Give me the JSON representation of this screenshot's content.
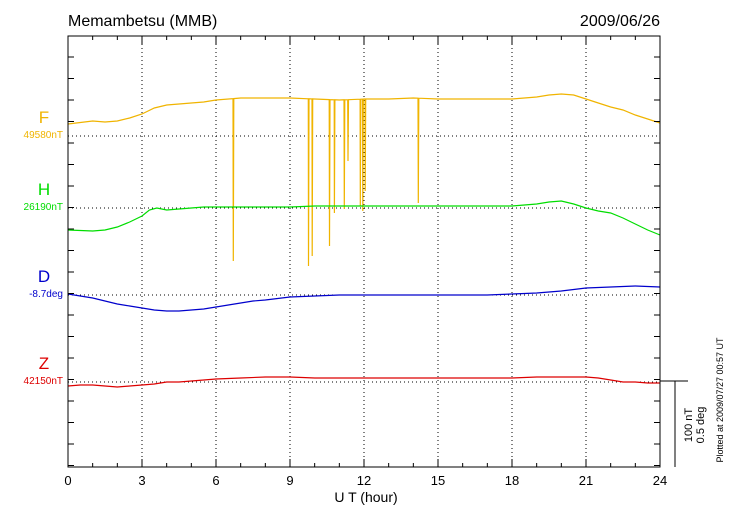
{
  "header": {
    "station": "Memambetsu (MMB)",
    "date": "2009/06/26"
  },
  "footer_note": "Plotted at 2009/07/27 00:57 UT",
  "scale_bar": {
    "line1": "100 nT",
    "line2": "0.5 deg"
  },
  "colors": {
    "F": "#f0b400",
    "H": "#00dd00",
    "D": "#0000cc",
    "Z": "#dd0000",
    "axis": "#000000",
    "grid": "#000000"
  },
  "chart_data": {
    "type": "line",
    "xlabel": "U T (hour)",
    "xlim": [
      0,
      24
    ],
    "xticks": [
      "0",
      "3",
      "6",
      "9",
      "12",
      "15",
      "18",
      "21",
      "24"
    ],
    "grid": true,
    "series": [
      {
        "name": "F",
        "label": "F",
        "baseline_label": "49580nT",
        "baseline_value": 49580,
        "unit": "nT",
        "color": "#f0b400",
        "x": [
          0,
          1,
          1.5,
          2,
          2.5,
          3,
          3.5,
          4,
          4.5,
          5,
          5.5,
          6,
          7,
          8,
          9,
          10,
          11,
          12,
          13,
          14,
          15,
          16,
          17,
          18,
          19,
          19.5,
          20,
          20.5,
          21,
          21.5,
          22,
          22.5,
          23,
          23.5,
          24
        ],
        "y": [
          12,
          15,
          14,
          15,
          18,
          22,
          28,
          31,
          32,
          33,
          34,
          36,
          38,
          38,
          38,
          37,
          36,
          37,
          37,
          38,
          37,
          37,
          37,
          37,
          39,
          41,
          42,
          41,
          37,
          33,
          29,
          26,
          21,
          17,
          13
        ],
        "spikes": [
          {
            "x": 6.7,
            "y": -125
          },
          {
            "x": 9.75,
            "y": -130
          },
          {
            "x": 9.9,
            "y": -120
          },
          {
            "x": 10.6,
            "y": -110
          },
          {
            "x": 10.8,
            "y": -77
          },
          {
            "x": 11.2,
            "y": -73
          },
          {
            "x": 11.35,
            "y": -25
          },
          {
            "x": 11.85,
            "y": -70
          },
          {
            "x": 11.95,
            "y": -75
          },
          {
            "x": 12.05,
            "y": -55
          },
          {
            "x": 14.2,
            "y": -67
          }
        ]
      },
      {
        "name": "H",
        "label": "H",
        "baseline_label": "26190nT",
        "baseline_value": 26190,
        "unit": "nT",
        "color": "#00dd00",
        "x": [
          0,
          1,
          1.5,
          2,
          2.5,
          3,
          3.3,
          3.6,
          4,
          4.5,
          5,
          5.5,
          6,
          7,
          8,
          9,
          10,
          11,
          12,
          13,
          14,
          15,
          16,
          17,
          18,
          19,
          19.5,
          20,
          20.5,
          21,
          21.5,
          22,
          22.5,
          23,
          23.5,
          24
        ],
        "y": [
          -22,
          -23,
          -22,
          -19,
          -14,
          -8,
          -2,
          0,
          -2,
          -1,
          0,
          1,
          1,
          1,
          1,
          1,
          2,
          2,
          2,
          2,
          2,
          2,
          2,
          2,
          2,
          4,
          6,
          7,
          4,
          0,
          -3,
          -5,
          -10,
          -16,
          -22,
          -27
        ]
      },
      {
        "name": "D",
        "label": "D",
        "baseline_label": "-8.7deg",
        "baseline_value": -8.7,
        "unit": "deg",
        "color": "#0000cc",
        "x": [
          0,
          0.5,
          1,
          1.5,
          2,
          2.5,
          3,
          3.5,
          4,
          4.5,
          5,
          5.5,
          6,
          6.5,
          7,
          7.5,
          8,
          9,
          10,
          11,
          12,
          13,
          14,
          15,
          16,
          17,
          18,
          19,
          20,
          21,
          22,
          23,
          24
        ],
        "y": [
          1,
          -1,
          -3,
          -6,
          -9,
          -11,
          -13,
          -15,
          -16,
          -16,
          -15,
          -14,
          -12,
          -10,
          -8,
          -6,
          -5,
          -2,
          -1,
          0,
          0,
          0,
          0,
          0,
          0,
          0,
          1,
          2,
          4,
          7,
          8,
          9,
          8
        ]
      },
      {
        "name": "Z",
        "label": "Z",
        "baseline_label": "42150nT",
        "baseline_value": 42150,
        "unit": "nT",
        "color": "#dd0000",
        "x": [
          0,
          0.5,
          1,
          1.5,
          2,
          2.5,
          3,
          3.5,
          4,
          4.5,
          5,
          5.5,
          6,
          7,
          8,
          9,
          10,
          11,
          12,
          13,
          14,
          15,
          16,
          17,
          18,
          19,
          20,
          21,
          21.5,
          22,
          22.5,
          23,
          23.5,
          24
        ],
        "y": [
          -4,
          -3,
          -3,
          -4,
          -5,
          -4,
          -3,
          -2,
          0,
          0,
          1,
          2,
          3,
          4,
          5,
          5,
          4,
          4,
          4,
          4,
          4,
          4,
          4,
          4,
          4,
          5,
          5,
          5,
          4,
          2,
          0,
          0,
          -1,
          -1
        ]
      }
    ]
  }
}
